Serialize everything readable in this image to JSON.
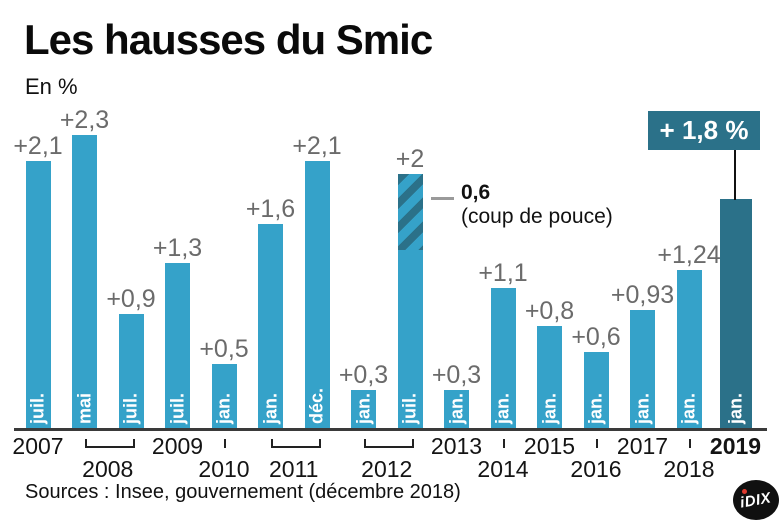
{
  "title": "Les hausses du Smic",
  "subtitle": "En %",
  "colors": {
    "bar": "#35a2c9",
    "bar_highlight": "#2b7189",
    "value_label": "#6b6b6b",
    "axis": "#3a3a3a",
    "badge_bg": "#2b7189",
    "badge_text": "#ffffff",
    "annotation_dash": "#9a9a9a",
    "logo_bg": "#101010",
    "logo_dot": "#e03a2f"
  },
  "chart_data": {
    "type": "bar",
    "title": "Les hausses du Smic",
    "ylabel": "En %",
    "unit": "%",
    "ylim": [
      0,
      2.5
    ],
    "grid": false,
    "bars": [
      {
        "month": "juil.",
        "year": "2007",
        "value": 2.1,
        "value_label": "+2,1"
      },
      {
        "month": "mai",
        "year": "2008",
        "value": 2.3,
        "value_label": "+2,3"
      },
      {
        "month": "juil.",
        "year": "2008",
        "value": 0.9,
        "value_label": "+0,9"
      },
      {
        "month": "juil.",
        "year": "2009",
        "value": 1.3,
        "value_label": "+1,3"
      },
      {
        "month": "jan.",
        "year": "2010",
        "value": 0.5,
        "value_label": "+0,5"
      },
      {
        "month": "jan.",
        "year": "2011",
        "value": 1.6,
        "value_label": "+1,6"
      },
      {
        "month": "déc.",
        "year": "2011",
        "value": 2.1,
        "value_label": "+2,1"
      },
      {
        "month": "jan.",
        "year": "2012",
        "value": 0.3,
        "value_label": "+0,3"
      },
      {
        "month": "juil.",
        "year": "2012",
        "value": 2.0,
        "value_label": "+2",
        "hatch_value": 0.6
      },
      {
        "month": "jan.",
        "year": "2013",
        "value": 0.3,
        "value_label": "+0,3"
      },
      {
        "month": "jan.",
        "year": "2014",
        "value": 1.1,
        "value_label": "+1,1"
      },
      {
        "month": "jan.",
        "year": "2015",
        "value": 0.8,
        "value_label": "+0,8"
      },
      {
        "month": "jan.",
        "year": "2016",
        "value": 0.6,
        "value_label": "+0,6"
      },
      {
        "month": "jan.",
        "year": "2017",
        "value": 0.93,
        "value_label": "+0,93"
      },
      {
        "month": "jan.",
        "year": "2018",
        "value": 1.24,
        "value_label": "+1,24"
      },
      {
        "month": "jan.",
        "year": "2019",
        "value": 1.8,
        "highlighted": true
      }
    ],
    "annotation": {
      "bold": "0,6",
      "text": "(coup de pouce)",
      "applies_to": "juil. 2012"
    },
    "badge": {
      "label": "+ 1,8 %",
      "applies_to": "jan. 2019"
    },
    "year_axis": [
      {
        "label": "2007",
        "bars": [
          0
        ],
        "row": 1,
        "marker": "none",
        "bold": false
      },
      {
        "label": "2008",
        "bars": [
          1,
          2
        ],
        "row": 2,
        "marker": "bracket",
        "bold": false
      },
      {
        "label": "2009",
        "bars": [
          3
        ],
        "row": 1,
        "marker": "none",
        "bold": false
      },
      {
        "label": "2010",
        "bars": [
          4
        ],
        "row": 2,
        "marker": "tick",
        "bold": false
      },
      {
        "label": "2011",
        "bars": [
          5,
          6
        ],
        "row": 2,
        "marker": "bracket",
        "bold": false
      },
      {
        "label": "2012",
        "bars": [
          7,
          8
        ],
        "row": 2,
        "marker": "bracket",
        "bold": false
      },
      {
        "label": "2013",
        "bars": [
          9
        ],
        "row": 1,
        "marker": "none",
        "bold": false
      },
      {
        "label": "2014",
        "bars": [
          10
        ],
        "row": 2,
        "marker": "tick",
        "bold": false
      },
      {
        "label": "2015",
        "bars": [
          11
        ],
        "row": 1,
        "marker": "none",
        "bold": false
      },
      {
        "label": "2016",
        "bars": [
          12
        ],
        "row": 2,
        "marker": "tick",
        "bold": false
      },
      {
        "label": "2017",
        "bars": [
          13
        ],
        "row": 1,
        "marker": "none",
        "bold": false
      },
      {
        "label": "2018",
        "bars": [
          14
        ],
        "row": 2,
        "marker": "tick",
        "bold": false
      },
      {
        "label": "2019",
        "bars": [
          15
        ],
        "row": 1,
        "marker": "none",
        "bold": true
      }
    ]
  },
  "footer": {
    "sources": "Sources : Insee, gouvernement (décembre 2018)",
    "logo_text": "iDIX"
  }
}
